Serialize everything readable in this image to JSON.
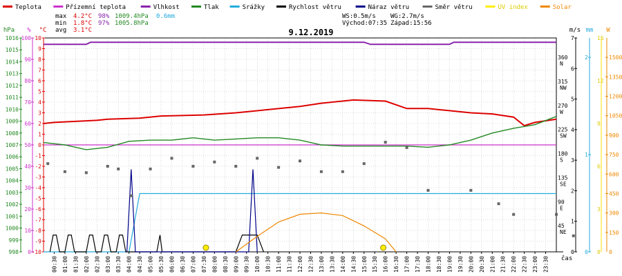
{
  "legend": [
    {
      "label": "Teplota",
      "color": "#dd0000"
    },
    {
      "label": "Přízemní teplota",
      "color": "#cc33cc"
    },
    {
      "label": "Vlhkost",
      "color": "#8822aa"
    },
    {
      "label": "Tlak",
      "color": "#228822"
    },
    {
      "label": "Srážky",
      "color": "#22aadd"
    },
    {
      "label": "Rychlost větru",
      "color": "#000000"
    },
    {
      "label": "Náraz větru",
      "color": "#000088"
    },
    {
      "label": "Směr větru",
      "color": "#666666"
    },
    {
      "label": "UV index",
      "color": "#ffee00"
    },
    {
      "label": "Solar",
      "color": "#ee8800"
    }
  ],
  "stats": {
    "max": {
      "label": "max",
      "temp": "4.2°C",
      "hum": "98%",
      "press": "1009.4hPa",
      "rain": "0.6mm"
    },
    "min": {
      "label": "min",
      "temp": "1.8°C",
      "hum": "97%",
      "press": "1005.8hPa"
    },
    "avg": {
      "label": "avg",
      "temp": "3.1°C"
    }
  },
  "wind_info": {
    "ws": "WS:0.5m/s",
    "wg": "WG:2.7m/s",
    "sunrise": "Východ:07:35",
    "sunset": "Západ:15:56"
  },
  "chart_title": "9.12.2019",
  "axes": {
    "hpa_unit": "hPa",
    "pct_unit": "%",
    "temp_unit": "°C",
    "ms_unit": "m/s",
    "mm_unit": "mm",
    "w_unit": "W",
    "x_unit": "čas",
    "hpa_ticks": [
      "1016",
      "1015",
      "1014",
      "1013",
      "1012",
      "1011",
      "1010",
      "1009",
      "1008",
      "1007",
      "1006",
      "1005",
      "1004",
      "1003",
      "1002",
      "1001",
      "1000",
      "999",
      "998"
    ],
    "pct_ticks": [
      "100",
      "90",
      "80",
      "70",
      "60",
      "50",
      "40",
      "30",
      "20",
      "10",
      "0"
    ],
    "temp_ticks": [
      "10",
      "9",
      "8",
      "7",
      "6",
      "5",
      "4",
      "3",
      "2",
      "1",
      "0",
      "-1",
      "-2",
      "-3",
      "-4",
      "-5",
      "-6",
      "-7",
      "-8",
      "-9",
      "-10"
    ],
    "dir_ticks": [
      {
        "deg": "360",
        "dir": "N"
      },
      {
        "deg": "315",
        "dir": "NW"
      },
      {
        "deg": "270",
        "dir": "W"
      },
      {
        "deg": "225",
        "dir": "SW"
      },
      {
        "deg": "180",
        "dir": "S"
      },
      {
        "deg": "135",
        "dir": "SE"
      },
      {
        "deg": "90",
        "dir": "E"
      },
      {
        "deg": "45",
        "dir": "NE"
      }
    ],
    "ms_ticks": [
      "7",
      "6",
      "5",
      "4",
      "3",
      "2",
      "1",
      "0"
    ],
    "mm_ticks": [
      "2",
      "1",
      "0"
    ],
    "uv_ticks": [
      "15",
      "12",
      "9",
      "6",
      "3",
      "0"
    ],
    "w_ticks": [
      "1500",
      "1350",
      "1200",
      "1050",
      "900",
      "750",
      "600",
      "450",
      "300",
      "150",
      "0"
    ],
    "x_ticks": [
      "00:30",
      "01:00",
      "01:30",
      "02:00",
      "02:30",
      "03:00",
      "03:30",
      "04:00",
      "04:30",
      "05:00",
      "05:30",
      "06:00",
      "06:30",
      "07:00",
      "07:30",
      "08:00",
      "08:30",
      "09:00",
      "09:30",
      "10:00",
      "10:30",
      "11:00",
      "11:30",
      "12:00",
      "12:30",
      "13:00",
      "13:30",
      "14:00",
      "14:30",
      "15:00",
      "15:30",
      "16:00",
      "16:30",
      "17:00",
      "17:30",
      "18:00",
      "18:30",
      "19:00",
      "19:30",
      "20:00",
      "20:30",
      "21:00",
      "21:30",
      "22:00",
      "22:30",
      "23:00",
      "23:30"
    ]
  },
  "chart_data": {
    "type": "line",
    "title": "9.12.2019",
    "x_range_hours": [
      0,
      24
    ],
    "series": [
      {
        "name": "Teplota",
        "unit": "°C",
        "color": "#dd0000",
        "points": [
          [
            0,
            2.0
          ],
          [
            0.5,
            2.1
          ],
          [
            1.5,
            2.2
          ],
          [
            2.5,
            2.3
          ],
          [
            3.0,
            2.4
          ],
          [
            4.5,
            2.5
          ],
          [
            5.5,
            2.7
          ],
          [
            7.5,
            2.8
          ],
          [
            9.0,
            3.0
          ],
          [
            10.5,
            3.3
          ],
          [
            12.0,
            3.6
          ],
          [
            13.0,
            3.9
          ],
          [
            14.5,
            4.2
          ],
          [
            16.0,
            4.1
          ],
          [
            17.0,
            3.4
          ],
          [
            18.0,
            3.4
          ],
          [
            19.0,
            3.2
          ],
          [
            20.0,
            3.0
          ],
          [
            21.0,
            2.9
          ],
          [
            22.0,
            2.6
          ],
          [
            22.5,
            1.8
          ],
          [
            23.0,
            2.1
          ],
          [
            24.0,
            2.4
          ]
        ]
      },
      {
        "name": "Přízemní teplota",
        "unit": "°C",
        "color": "#cc33cc",
        "points": [
          [
            0,
            0.0
          ],
          [
            24,
            0.0
          ]
        ]
      },
      {
        "name": "Vlhkost",
        "unit": "%",
        "color": "#8822aa",
        "points": [
          [
            0,
            97
          ],
          [
            2.0,
            97
          ],
          [
            2.2,
            98
          ],
          [
            15.0,
            98
          ],
          [
            15.3,
            97
          ],
          [
            19.0,
            97
          ],
          [
            19.2,
            98
          ],
          [
            24,
            98
          ]
        ]
      },
      {
        "name": "Tlak",
        "unit": "hPa",
        "color": "#228822",
        "points": [
          [
            0,
            1007.2
          ],
          [
            1.0,
            1007.0
          ],
          [
            2.0,
            1006.6
          ],
          [
            3.0,
            1006.8
          ],
          [
            4.0,
            1007.3
          ],
          [
            5.0,
            1007.4
          ],
          [
            6.0,
            1007.4
          ],
          [
            7.0,
            1007.6
          ],
          [
            8.0,
            1007.4
          ],
          [
            9.0,
            1007.5
          ],
          [
            10.0,
            1007.6
          ],
          [
            11.0,
            1007.6
          ],
          [
            12.0,
            1007.4
          ],
          [
            13.0,
            1007.0
          ],
          [
            14.0,
            1006.9
          ],
          [
            15.0,
            1006.9
          ],
          [
            16.0,
            1006.9
          ],
          [
            17.0,
            1006.9
          ],
          [
            18.0,
            1006.8
          ],
          [
            19.0,
            1007.0
          ],
          [
            20.0,
            1007.4
          ],
          [
            21.0,
            1008.0
          ],
          [
            22.0,
            1008.4
          ],
          [
            23.0,
            1008.7
          ],
          [
            24.0,
            1009.4
          ]
        ]
      },
      {
        "name": "Srážky",
        "unit": "mm",
        "color": "#22aadd",
        "points": [
          [
            0,
            0
          ],
          [
            4.0,
            0
          ],
          [
            4.5,
            0.6
          ],
          [
            24,
            0.6
          ]
        ]
      },
      {
        "name": "Rychlost větru",
        "unit": "m/s",
        "color": "#000000",
        "points": [
          [
            0.3,
            0
          ],
          [
            0.45,
            0.55
          ],
          [
            0.6,
            0.55
          ],
          [
            0.75,
            0
          ],
          [
            1.0,
            0
          ],
          [
            1.15,
            0.55
          ],
          [
            1.3,
            0.55
          ],
          [
            1.45,
            0
          ],
          [
            2.0,
            0
          ],
          [
            2.15,
            0.55
          ],
          [
            2.3,
            0.55
          ],
          [
            2.45,
            0
          ],
          [
            2.7,
            0
          ],
          [
            2.85,
            0.55
          ],
          [
            3.0,
            0.55
          ],
          [
            3.15,
            0
          ],
          [
            3.4,
            0
          ],
          [
            3.55,
            0.55
          ],
          [
            3.7,
            0.55
          ],
          [
            3.85,
            0
          ],
          [
            5.3,
            0
          ],
          [
            5.45,
            0.55
          ],
          [
            5.55,
            0
          ],
          [
            9.0,
            0
          ],
          [
            9.3,
            0.55
          ],
          [
            10.0,
            0.55
          ],
          [
            10.3,
            0
          ]
        ]
      },
      {
        "name": "Náraz větru",
        "unit": "m/s",
        "color": "#000088",
        "points": [
          [
            3.9,
            0
          ],
          [
            4.1,
            2.7
          ],
          [
            4.3,
            0
          ],
          [
            9.6,
            0
          ],
          [
            9.8,
            2.7
          ],
          [
            10.0,
            0
          ]
        ]
      },
      {
        "name": "Směr větru",
        "unit": "°",
        "color": "#666666",
        "points": [
          [
            0.2,
            165
          ],
          [
            1.0,
            150
          ],
          [
            2.0,
            148
          ],
          [
            3.0,
            160
          ],
          [
            3.5,
            155
          ],
          [
            4.1,
            105
          ],
          [
            5.0,
            155
          ],
          [
            6.0,
            175
          ],
          [
            7.0,
            160
          ],
          [
            8.0,
            168
          ],
          [
            9.0,
            160
          ],
          [
            10.0,
            175
          ],
          [
            11.0,
            158
          ],
          [
            12.0,
            170
          ],
          [
            13.0,
            150
          ],
          [
            14.0,
            150
          ],
          [
            15.0,
            165
          ],
          [
            16.0,
            205
          ],
          [
            17.0,
            195
          ],
          [
            18.0,
            115
          ],
          [
            20.0,
            115
          ],
          [
            21.3,
            90
          ],
          [
            22.0,
            70
          ],
          [
            24.0,
            70
          ],
          [
            24.8,
            30
          ]
        ]
      },
      {
        "name": "Solar",
        "unit": "W",
        "color": "#ee8800",
        "points": [
          [
            9.0,
            0
          ],
          [
            10.0,
            120
          ],
          [
            11.0,
            230
          ],
          [
            12.0,
            290
          ],
          [
            13.0,
            300
          ],
          [
            14.0,
            280
          ],
          [
            15.0,
            200
          ],
          [
            16.0,
            100
          ],
          [
            16.5,
            0
          ]
        ]
      }
    ]
  }
}
